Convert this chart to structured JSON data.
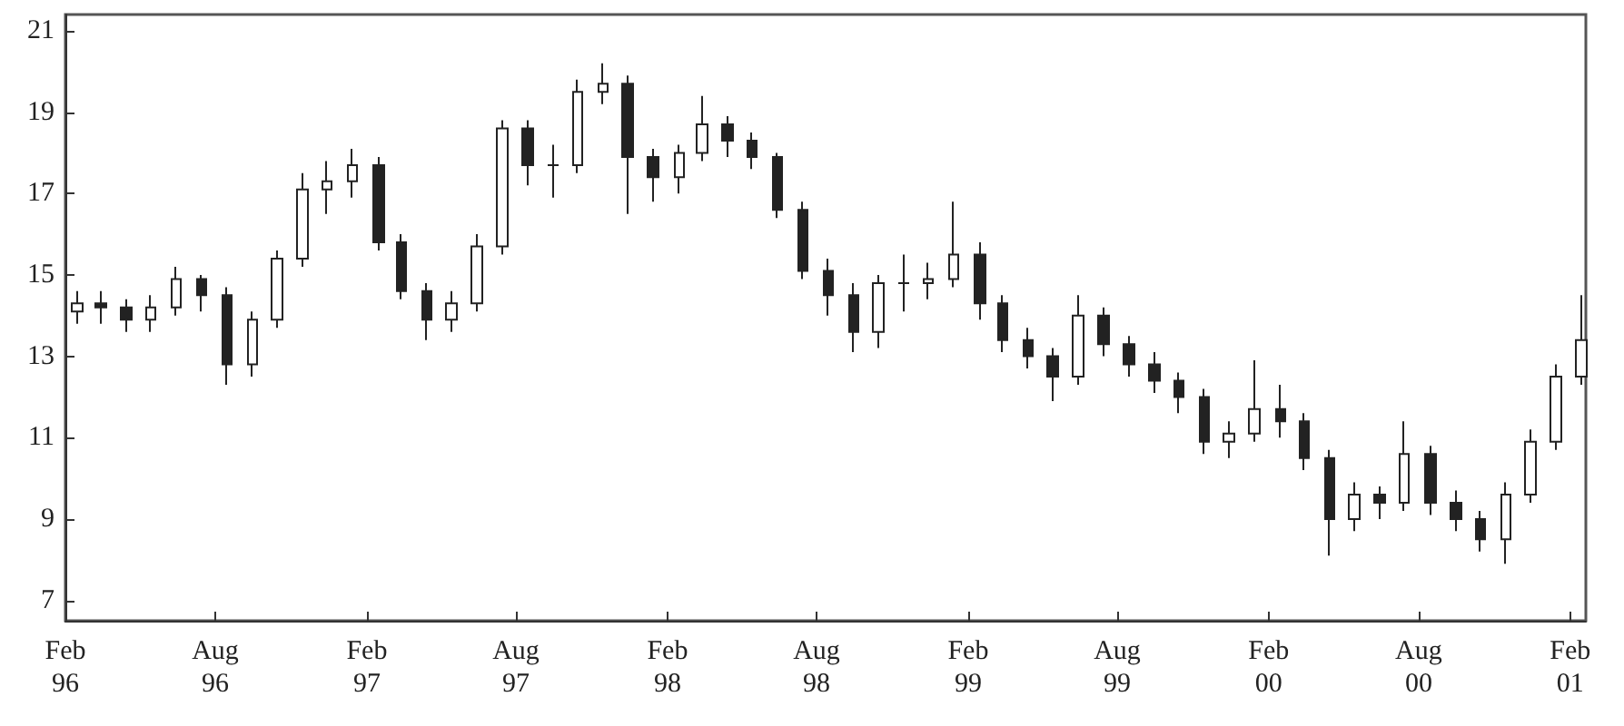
{
  "chart_data": {
    "type": "candlestick",
    "color": "#222222",
    "x": [
      "1996-02-15",
      "1996-03-15",
      "1996-04-15",
      "1996-05-15",
      "1996-06-15",
      "1996-07-15",
      "1996-08-15",
      "1996-09-15",
      "1996-10-15",
      "1996-11-15",
      "1996-12-15",
      "1997-01-15",
      "1997-02-15",
      "1997-03-15",
      "1997-04-15",
      "1997-05-15",
      "1997-06-15",
      "1997-07-15",
      "1997-08-15",
      "1997-09-15",
      "1997-10-15",
      "1997-11-15",
      "1997-12-15",
      "1998-01-15",
      "1998-02-15",
      "1998-03-15",
      "1998-04-15",
      "1998-05-15",
      "1998-06-15",
      "1998-07-15",
      "1998-08-15",
      "1998-09-15",
      "1998-10-15",
      "1998-11-15",
      "1998-12-15",
      "1999-01-15",
      "1999-02-15",
      "1999-03-15",
      "1999-04-15",
      "1999-05-15",
      "1999-06-15",
      "1999-07-15",
      "1999-08-15",
      "1999-09-15",
      "1999-10-15",
      "1999-11-15",
      "1999-12-15",
      "2000-01-15",
      "2000-02-15",
      "2000-03-15",
      "2000-04-15",
      "2000-05-15",
      "2000-06-15",
      "2000-07-15",
      "2000-08-15",
      "2000-09-15",
      "2000-10-15",
      "2000-11-15",
      "2000-12-15",
      "2001-01-15",
      "2001-02-15"
    ],
    "ohlc": [
      [
        14.1,
        14.6,
        13.8,
        14.3
      ],
      [
        14.3,
        14.6,
        13.8,
        14.2
      ],
      [
        14.2,
        14.4,
        13.6,
        13.9
      ],
      [
        13.9,
        14.5,
        13.6,
        14.2
      ],
      [
        14.2,
        15.2,
        14.0,
        14.9
      ],
      [
        14.9,
        15.0,
        14.1,
        14.5
      ],
      [
        14.5,
        14.7,
        12.3,
        12.8
      ],
      [
        12.8,
        14.1,
        12.5,
        13.9
      ],
      [
        13.9,
        15.6,
        13.7,
        15.4
      ],
      [
        15.4,
        17.5,
        15.2,
        17.1
      ],
      [
        17.1,
        17.8,
        16.5,
        17.3
      ],
      [
        17.3,
        18.1,
        16.9,
        17.7
      ],
      [
        17.7,
        17.9,
        15.6,
        15.8
      ],
      [
        15.8,
        16.0,
        14.4,
        14.6
      ],
      [
        14.6,
        14.8,
        13.4,
        13.9
      ],
      [
        13.9,
        14.6,
        13.6,
        14.3
      ],
      [
        14.3,
        16.0,
        14.1,
        15.7
      ],
      [
        15.7,
        18.8,
        15.5,
        18.6
      ],
      [
        18.6,
        18.8,
        17.2,
        17.7
      ],
      [
        17.7,
        18.2,
        16.9,
        17.7
      ],
      [
        17.7,
        19.8,
        17.5,
        19.5
      ],
      [
        19.5,
        20.2,
        19.2,
        19.7
      ],
      [
        19.7,
        19.9,
        16.5,
        17.9
      ],
      [
        17.9,
        18.1,
        16.8,
        17.4
      ],
      [
        17.4,
        18.2,
        17.0,
        18.0
      ],
      [
        18.0,
        19.4,
        17.8,
        18.7
      ],
      [
        18.7,
        18.9,
        17.9,
        18.3
      ],
      [
        18.3,
        18.5,
        17.6,
        17.9
      ],
      [
        17.9,
        18.0,
        16.4,
        16.6
      ],
      [
        16.6,
        16.8,
        14.9,
        15.1
      ],
      [
        15.1,
        15.4,
        14.0,
        14.5
      ],
      [
        14.5,
        14.8,
        13.1,
        13.6
      ],
      [
        13.6,
        15.0,
        13.2,
        14.8
      ],
      [
        14.8,
        15.5,
        14.1,
        14.8
      ],
      [
        14.8,
        15.3,
        14.4,
        14.9
      ],
      [
        14.9,
        16.8,
        14.7,
        15.5
      ],
      [
        15.5,
        15.8,
        13.9,
        14.3
      ],
      [
        14.3,
        14.5,
        13.1,
        13.4
      ],
      [
        13.4,
        13.7,
        12.7,
        13.0
      ],
      [
        13.0,
        13.2,
        11.9,
        12.5
      ],
      [
        12.5,
        14.5,
        12.3,
        14.0
      ],
      [
        14.0,
        14.2,
        13.0,
        13.3
      ],
      [
        13.3,
        13.5,
        12.5,
        12.8
      ],
      [
        12.8,
        13.1,
        12.1,
        12.4
      ],
      [
        12.4,
        12.6,
        11.6,
        12.0
      ],
      [
        12.0,
        12.2,
        10.6,
        10.9
      ],
      [
        10.9,
        11.4,
        10.5,
        11.1
      ],
      [
        11.1,
        12.9,
        10.9,
        11.7
      ],
      [
        11.7,
        12.3,
        11.0,
        11.4
      ],
      [
        11.4,
        11.6,
        10.2,
        10.5
      ],
      [
        10.5,
        10.7,
        8.1,
        9.0
      ],
      [
        9.0,
        9.9,
        8.7,
        9.6
      ],
      [
        9.6,
        9.8,
        9.0,
        9.4
      ],
      [
        9.4,
        11.4,
        9.2,
        10.6
      ],
      [
        10.6,
        10.8,
        9.1,
        9.4
      ],
      [
        9.4,
        9.7,
        8.7,
        9.0
      ],
      [
        9.0,
        9.2,
        8.2,
        8.5
      ],
      [
        8.5,
        9.9,
        7.9,
        9.6
      ],
      [
        9.6,
        11.2,
        9.4,
        10.9
      ],
      [
        10.9,
        12.8,
        10.7,
        12.5
      ],
      [
        12.5,
        14.5,
        12.3,
        13.4
      ]
    ],
    "xlim": [
      "1996-02-01",
      "2001-02-20"
    ],
    "xticks": [
      {
        "value": "1996-02-01",
        "label": "Feb 96"
      },
      {
        "value": "1996-08-01",
        "label": "Aug 96"
      },
      {
        "value": "1997-02-01",
        "label": "Feb 97"
      },
      {
        "value": "1997-08-01",
        "label": "Aug 97"
      },
      {
        "value": "1998-02-01",
        "label": "Feb 98"
      },
      {
        "value": "1998-08-01",
        "label": "Aug 98"
      },
      {
        "value": "1999-02-01",
        "label": "Feb 99"
      },
      {
        "value": "1999-08-01",
        "label": "Aug 99"
      },
      {
        "value": "2000-02-01",
        "label": "Feb 00"
      },
      {
        "value": "2000-08-01",
        "label": "Aug 00"
      },
      {
        "value": "2001-02-01",
        "label": "Feb 01"
      }
    ],
    "ylim": [
      6.5,
      21.4
    ],
    "yticks": [
      7,
      9,
      11,
      13,
      15,
      17,
      19,
      21
    ],
    "grid": false
  }
}
